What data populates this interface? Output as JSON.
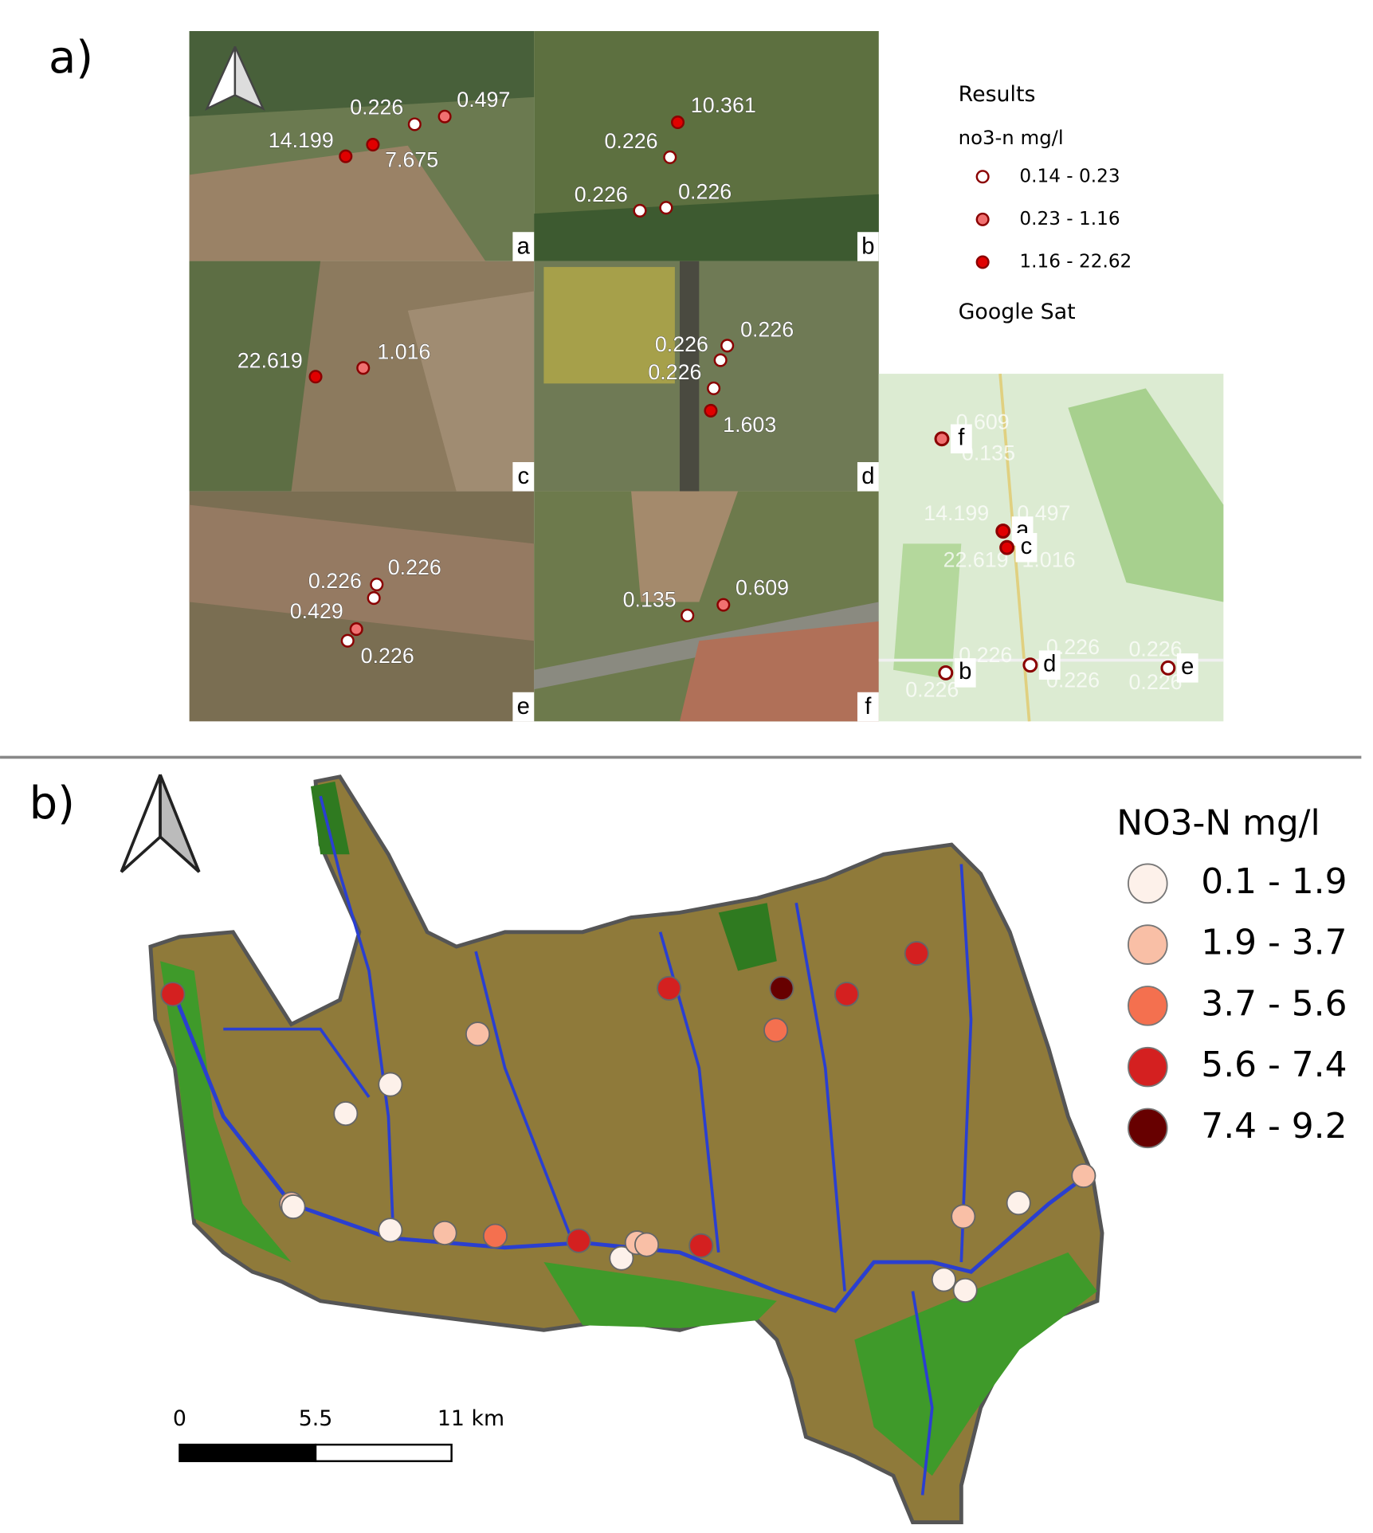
{
  "panel_a": {
    "label": "a)",
    "tiles": [
      {
        "letter": "a",
        "points": [
          {
            "label": "0.226",
            "class": 0
          },
          {
            "label": "0.497",
            "class": 1
          },
          {
            "label": "14.199",
            "class": 2
          },
          {
            "label": "7.675",
            "class": 2
          }
        ]
      },
      {
        "letter": "b",
        "points": [
          {
            "label": "10.361",
            "class": 2
          },
          {
            "label": "0.226",
            "class": 0
          },
          {
            "label": "0.226",
            "class": 0
          },
          {
            "label": "0.226",
            "class": 0
          }
        ]
      },
      {
        "letter": "c",
        "points": [
          {
            "label": "22.619",
            "class": 2
          },
          {
            "label": "1.016",
            "class": 1
          }
        ]
      },
      {
        "letter": "d",
        "points": [
          {
            "label": "0.226",
            "class": 0
          },
          {
            "label": "0.226",
            "class": 0
          },
          {
            "label": "0.226",
            "class": 0
          },
          {
            "label": "1.603",
            "class": 2
          }
        ]
      },
      {
        "letter": "e",
        "points": [
          {
            "label": "0.226",
            "class": 0
          },
          {
            "label": "0.226",
            "class": 0
          },
          {
            "label": "0.429",
            "class": 1
          },
          {
            "label": "0.226",
            "class": 0
          }
        ]
      },
      {
        "letter": "f",
        "points": [
          {
            "label": "0.135",
            "class": 0
          },
          {
            "label": "0.609",
            "class": 1
          }
        ]
      }
    ],
    "overview": {
      "sites": [
        {
          "letter": "f",
          "class": 1
        },
        {
          "letter": "a",
          "class": 2
        },
        {
          "letter": "c",
          "class": 2
        },
        {
          "letter": "b",
          "class": 0
        },
        {
          "letter": "d",
          "class": 0
        },
        {
          "letter": "e",
          "class": 0
        }
      ],
      "faint_labels": [
        "0.609",
        "0.135",
        "14.199",
        "0.497",
        "22.619",
        "1.016",
        "0.226",
        "0.226",
        "0.226",
        "0.226",
        "0.226",
        "0.226"
      ]
    },
    "legend": {
      "title": "Results",
      "subtitle": "no3-n mg/l",
      "classes": [
        {
          "label": "0.14 - 0.23",
          "fill": "#ffffff"
        },
        {
          "label": "0.23 - 1.16",
          "fill": "#f07070"
        },
        {
          "label": "1.16 - 22.62",
          "fill": "#e00000"
        }
      ],
      "basemap": "Google Sat"
    }
  },
  "panel_b": {
    "label": "b)",
    "legend": {
      "title": "NO3-N mg/l",
      "classes": [
        {
          "label": "0.1 - 1.9",
          "fill": "#fdf1ea"
        },
        {
          "label": "1.9 - 3.7",
          "fill": "#f9bfa6"
        },
        {
          "label": "3.7 - 5.6",
          "fill": "#f4704f"
        },
        {
          "label": "5.6 - 7.4",
          "fill": "#d42020"
        },
        {
          "label": "7.4 - 9.2",
          "fill": "#670000"
        }
      ]
    },
    "scale_bar": {
      "labels": [
        "0",
        "5.5",
        "11 km"
      ]
    }
  }
}
